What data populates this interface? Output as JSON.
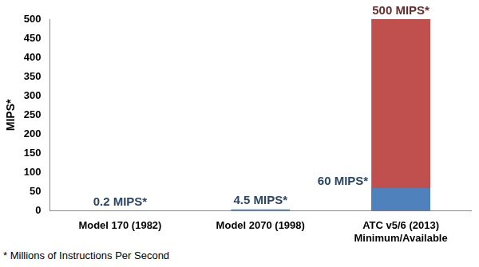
{
  "chart_data": {
    "type": "bar",
    "ylabel": "MIPS*",
    "categories": [
      "Model 170 (1982)",
      "Model 2070 (1998)",
      "ATC v5/6 (2013)\nMinimum/Available"
    ],
    "series": [
      {
        "color": "#4f81bd",
        "values": [
          0.2,
          4.5,
          60
        ],
        "value_labels": [
          "0.2 MIPS*",
          "4.5 MIPS*",
          "60 MIPS*"
        ]
      },
      {
        "color": "#c0504d",
        "values": [
          null,
          null,
          500
        ],
        "value_labels": [
          null,
          null,
          "500 MIPS*"
        ]
      }
    ],
    "ylim": [
      0,
      500
    ],
    "yticks": [
      0,
      50,
      100,
      150,
      200,
      250,
      300,
      350,
      400,
      450,
      500
    ],
    "grid": false,
    "stacked": false,
    "data_labels": true,
    "annotations": [
      "* Millions of Instructions Per Second"
    ]
  }
}
